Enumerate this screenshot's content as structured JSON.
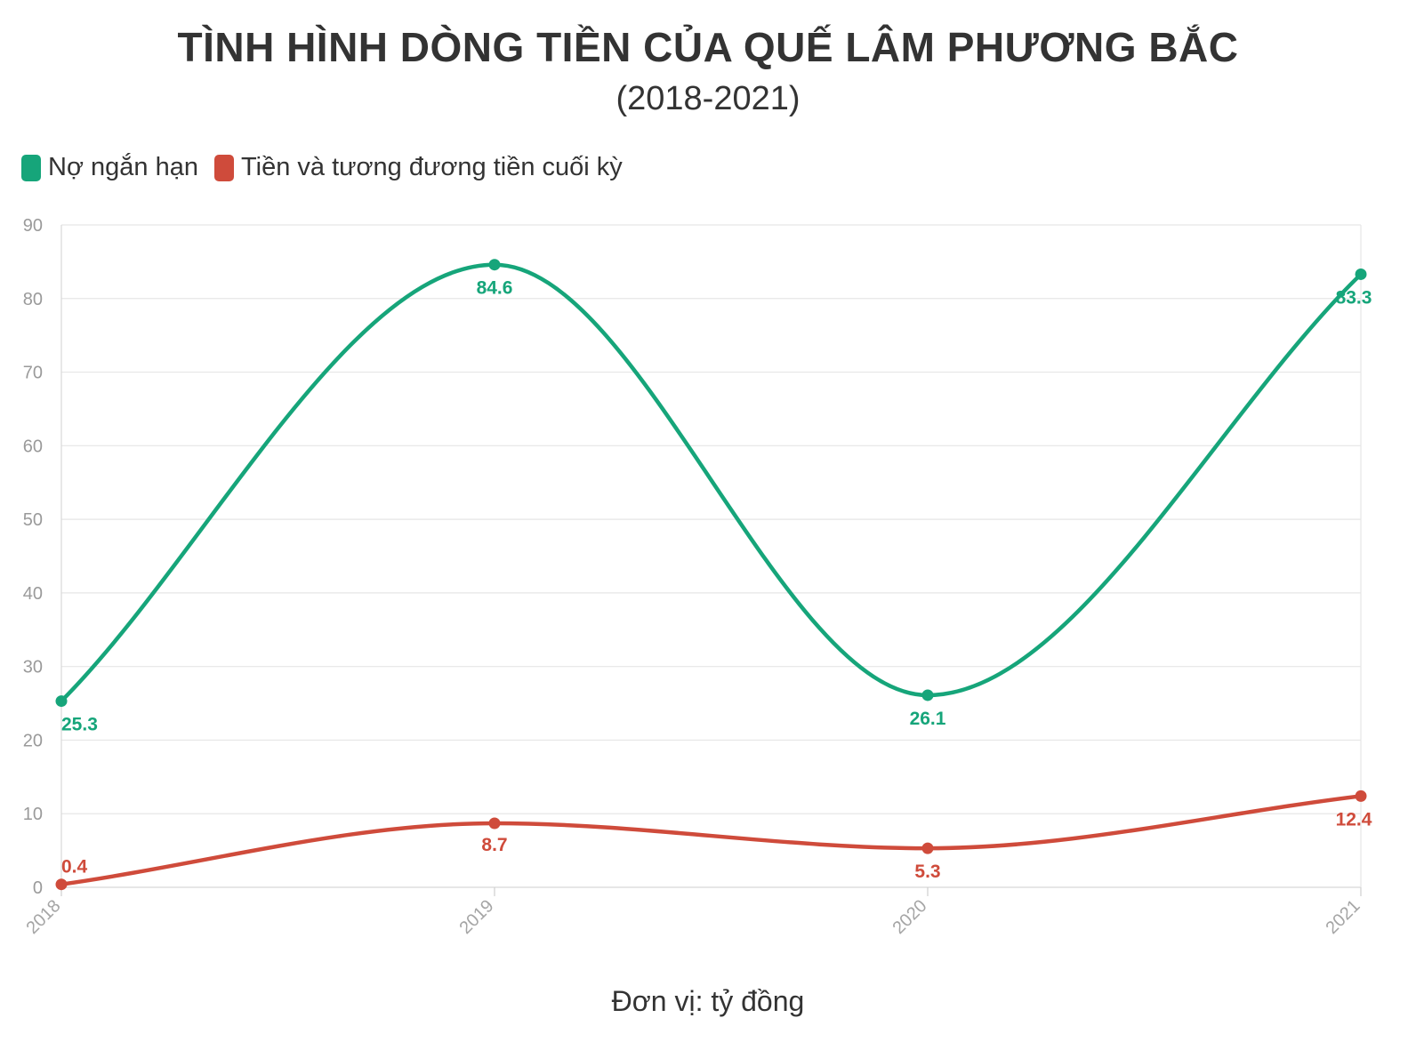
{
  "title": "TÌNH HÌNH DÒNG TIỀN CỦA QUẾ LÂM PHƯƠNG BẮC",
  "subtitle": "(2018-2021)",
  "unit_note": "Đơn vị: tỷ đồng",
  "chart_data": {
    "type": "line",
    "x": [
      "2018",
      "2019",
      "2020",
      "2021"
    ],
    "series": [
      {
        "name": "Nợ ngắn hạn",
        "color": "#16a57a",
        "values": [
          25.3,
          84.6,
          26.1,
          83.3
        ],
        "labels": [
          "25.3",
          "84.6",
          "26.1",
          "83.3"
        ]
      },
      {
        "name": "Tiền và tương đương tiền cuối kỳ",
        "color": "#cf4b3b",
        "values": [
          0.4,
          8.7,
          5.3,
          12.4
        ],
        "labels": [
          "0.4",
          "8.7",
          "5.3",
          "12.4"
        ]
      }
    ],
    "ylim": [
      0,
      90
    ],
    "yticks": [
      "0",
      "10",
      "20",
      "30",
      "40",
      "50",
      "60",
      "70",
      "80",
      "90"
    ],
    "grid": true,
    "legend_position": "top-left",
    "curve": "smooth"
  }
}
